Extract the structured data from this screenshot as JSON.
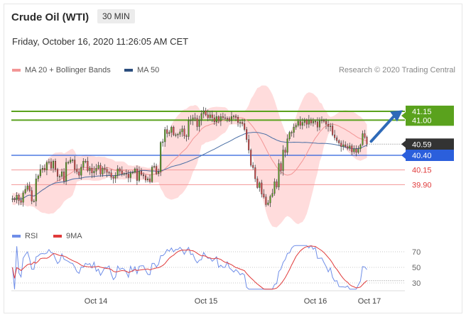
{
  "header": {
    "title": "Crude Oil (WTI)",
    "timeframe": "30 MIN"
  },
  "timestamp": "Friday, October 16, 2020 11:26:05 AM CET",
  "legend": {
    "ma20": "MA 20 + Bollinger Bands",
    "ma50": "MA 50",
    "rsi": "RSI",
    "ma9": "9MA"
  },
  "credit": "Research © 2020 Trading Central",
  "colors": {
    "resistance": "#5aa21d",
    "current": "#333333",
    "pivot": "#2b5fdc",
    "support": "#f39696",
    "ma20": "#f39696",
    "ma50": "#4a6fa5",
    "bands": "#ffd6d6",
    "rsi": "#6f8ee8",
    "ma9": "#e03a3a",
    "up": "#5aa21d",
    "down": "#d94a4a"
  },
  "chart_data": [
    {
      "type": "line",
      "subtype": "candlestick",
      "x_labels": [
        "Oct 14",
        "Oct 15",
        "Oct 16",
        "Oct 17"
      ],
      "ylim": [
        39.3,
        41.5
      ],
      "levels": [
        {
          "label": "41.15",
          "value": 41.15,
          "kind": "resistance"
        },
        {
          "label": "41.00",
          "value": 41.0,
          "kind": "resistance"
        },
        {
          "label": "40.59",
          "value": 40.59,
          "kind": "current"
        },
        {
          "label": "40.40",
          "value": 40.4,
          "kind": "pivot"
        },
        {
          "label": "40.15",
          "value": 40.15,
          "kind": "support"
        },
        {
          "label": "39.90",
          "value": 39.9,
          "kind": "support"
        }
      ],
      "close": [
        39.66,
        39.64,
        39.72,
        39.63,
        39.6,
        39.76,
        39.82,
        39.88,
        39.8,
        39.62,
        39.62,
        40.0,
        40.05,
        40.16,
        40.18,
        40.15,
        40.28,
        40.29,
        40.18,
        40.3,
        40.16,
        40.04,
        40.04,
        40.12,
        39.96,
        40.28,
        40.28,
        40.32,
        40.32,
        40.16,
        40.12,
        40.06,
        40.2,
        40.3,
        40.3,
        40.14,
        40.18,
        40.1,
        40.13,
        40.18,
        40.23,
        40.08,
        40.18,
        40.16,
        40.11,
        40.1,
        40.03,
        40.01,
        40.06,
        40.17,
        40.13,
        40.08,
        40.09,
        40.08,
        40.02,
        40.1,
        40.11,
        40.17,
        39.97,
        40.13,
        40.07,
        40.05,
        39.98,
        40.0,
        39.95,
        40.2,
        40.21,
        40.09,
        40.12,
        40.62,
        40.63,
        40.84,
        40.77,
        40.79,
        40.88,
        40.75,
        40.75,
        40.76,
        40.8,
        40.85,
        40.73,
        40.72,
        40.99,
        41.0,
        41.04,
        41.03,
        40.89,
        41.0,
        41.11,
        41.16,
        41.09,
        41.04,
        41.09,
        41.04,
        40.97,
        41.06,
        40.99,
        41.06,
        41.04,
        41.03,
        41.02,
        40.99,
        41.06,
        41.07,
        41.05,
        40.96,
        40.96,
        40.94,
        40.84,
        40.67,
        40.49,
        40.23,
        40.19,
        40.0,
        39.85,
        39.93,
        39.74,
        39.69,
        39.56,
        39.59,
        39.7,
        39.75,
        39.95,
        39.86,
        40.26,
        40.14,
        40.49,
        40.45,
        40.68,
        40.79,
        40.79,
        40.88,
        40.91,
        40.98,
        40.91,
        40.96,
        41.0,
        40.93,
        41.0,
        40.95,
        40.98,
        40.97,
        40.88,
        40.99,
        41.0,
        40.98,
        40.93,
        40.89,
        40.9,
        40.75,
        40.7,
        40.65,
        40.61,
        40.55,
        40.58,
        40.55,
        40.52,
        40.56,
        40.46,
        40.51,
        40.45,
        40.51,
        40.58,
        40.77,
        40.71,
        40.59
      ],
      "rsi": {
        "ylim": [
          20,
          80
        ],
        "ticks": [
          70,
          50,
          30
        ],
        "current": 50
      }
    }
  ]
}
